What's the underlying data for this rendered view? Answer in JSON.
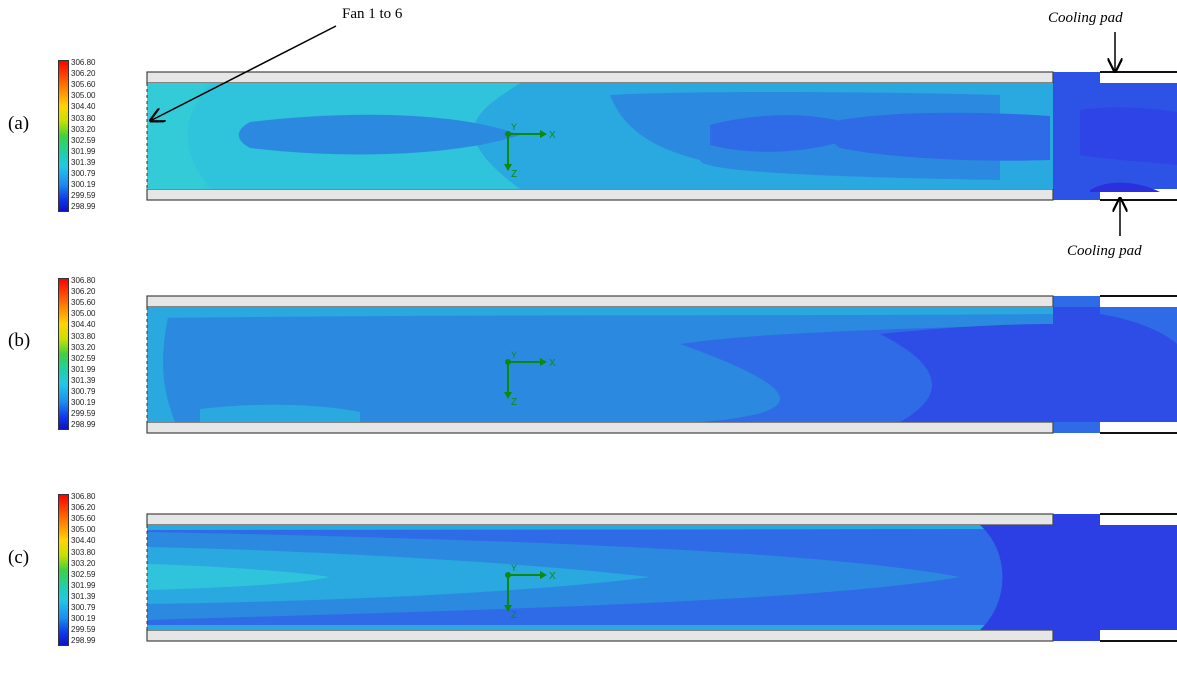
{
  "legend_values": [
    "306.80",
    "306.20",
    "305.60",
    "305.00",
    "304.40",
    "303.80",
    "303.20",
    "302.59",
    "301.99",
    "301.39",
    "300.79",
    "300.19",
    "299.59",
    "298.99"
  ],
  "panels": [
    {
      "label": "(a)"
    },
    {
      "label": "(b)"
    },
    {
      "label": "(c)"
    }
  ],
  "annotations": {
    "fan": "Fan 1 to 6",
    "cooling_pad_top": "Cooling pad",
    "cooling_pad_bottom": "Cooling pad"
  },
  "axes": {
    "x": "X",
    "y": "Y",
    "z": "Z"
  },
  "colors": {
    "light_cyan": "#2fc4dc",
    "cyan": "#2aa8e0",
    "mid_blue": "#2b7fe0",
    "blue": "#2f5ee8",
    "deep_blue": "#2c3fe4",
    "wall": "#e6e6e6",
    "axis_green": "#0d8a0d"
  }
}
